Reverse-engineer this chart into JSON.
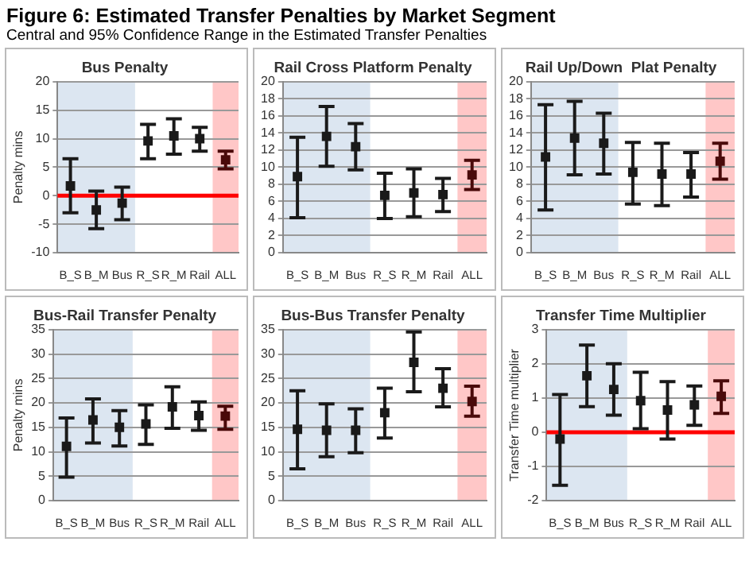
{
  "chart_data": [
    {
      "type": "other",
      "title": "Figure 6: Estimated Transfer Penalties by Market Segment",
      "subtitle": "Central and 95% Confidence Range in the Estimated Transfer Penalties"
    },
    {
      "type": "scatter",
      "title": "Bus Penalty",
      "ylabel": "Penalty mins",
      "categories": [
        "B_S",
        "B_M",
        "Bus",
        "R_S",
        "R_M",
        "Rail",
        "ALL"
      ],
      "values": [
        1.7,
        -2.5,
        -1.3,
        9.6,
        10.5,
        10,
        6.3
      ],
      "errors": [
        [
          -3,
          6.5
        ],
        [
          -5.8,
          0.8
        ],
        [
          -4.2,
          1.5
        ],
        [
          6.5,
          12.5
        ],
        [
          7.3,
          13.5
        ],
        [
          7.8,
          12
        ],
        [
          4.7,
          7.8
        ]
      ],
      "colors": [
        "#1a1a1a",
        "#1a1a1a",
        "#1a1a1a",
        "#1a1a1a",
        "#1a1a1a",
        "#1a1a1a",
        "#4a0a0a"
      ],
      "ylim": [
        -10,
        20
      ],
      "yticks": [
        -10,
        -5,
        0,
        5,
        10,
        15,
        20
      ],
      "grid": "y",
      "marker": "square",
      "ref_lines": [
        {
          "axis": "y",
          "value": 0,
          "color": "#ff0000"
        }
      ],
      "bands": [
        {
          "axis": "x",
          "from": "B_S",
          "to": "Bus",
          "color": "#dce6f1"
        },
        {
          "axis": "x",
          "from": "ALL",
          "to": "ALL",
          "color": "#ffc7c7"
        }
      ]
    },
    {
      "type": "scatter",
      "title": "Rail Cross Platform Penalty",
      "categories": [
        "B_S",
        "B_M",
        "Bus",
        "R_S",
        "R_M",
        "Rail",
        "ALL"
      ],
      "values": [
        8.9,
        13.6,
        12.4,
        6.7,
        7,
        6.8,
        9.1
      ],
      "errors": [
        [
          4.1,
          13.5
        ],
        [
          10.1,
          17.1
        ],
        [
          9.7,
          15.1
        ],
        [
          4,
          9.3
        ],
        [
          4.2,
          9.8
        ],
        [
          4.8,
          8.7
        ],
        [
          7.4,
          10.8
        ]
      ],
      "colors": [
        "#1a1a1a",
        "#1a1a1a",
        "#1a1a1a",
        "#1a1a1a",
        "#1a1a1a",
        "#1a1a1a",
        "#4a0a0a"
      ],
      "ylim": [
        0,
        20
      ],
      "yticks": [
        0,
        2,
        4,
        6,
        8,
        10,
        12,
        14,
        16,
        18,
        20
      ],
      "grid": "y",
      "marker": "square",
      "bands": [
        {
          "axis": "x",
          "from": "B_S",
          "to": "Bus",
          "color": "#dce6f1"
        },
        {
          "axis": "x",
          "from": "ALL",
          "to": "ALL",
          "color": "#ffc7c7"
        }
      ]
    },
    {
      "type": "scatter",
      "title": "Rail Up/Down  Plat Penalty",
      "categories": [
        "B_S",
        "B_M",
        "Bus",
        "R_S",
        "R_M",
        "Rail",
        "ALL"
      ],
      "values": [
        11.2,
        13.4,
        12.8,
        9.4,
        9.2,
        9.2,
        10.7
      ],
      "errors": [
        [
          5,
          17.3
        ],
        [
          9.1,
          17.7
        ],
        [
          9.2,
          16.3
        ],
        [
          5.7,
          12.9
        ],
        [
          5.5,
          12.8
        ],
        [
          6.5,
          11.7
        ],
        [
          8.6,
          12.8
        ]
      ],
      "colors": [
        "#1a1a1a",
        "#1a1a1a",
        "#1a1a1a",
        "#1a1a1a",
        "#1a1a1a",
        "#1a1a1a",
        "#4a0a0a"
      ],
      "ylim": [
        0,
        20
      ],
      "yticks": [
        0,
        2,
        4,
        6,
        8,
        10,
        12,
        14,
        16,
        18,
        20
      ],
      "grid": "y",
      "marker": "square",
      "bands": [
        {
          "axis": "x",
          "from": "B_S",
          "to": "Bus",
          "color": "#dce6f1"
        },
        {
          "axis": "x",
          "from": "ALL",
          "to": "ALL",
          "color": "#ffc7c7"
        }
      ]
    },
    {
      "type": "scatter",
      "title": "Bus-Rail Transfer Penalty",
      "ylabel": "Penalty mins",
      "categories": [
        "B_S",
        "B_M",
        "Bus",
        "R_S",
        "R_M",
        "Rail",
        "ALL"
      ],
      "values": [
        11.1,
        16.5,
        15,
        15.7,
        19.2,
        17.4,
        17.3
      ],
      "errors": [
        [
          4.8,
          16.9
        ],
        [
          11.8,
          20.8
        ],
        [
          11.2,
          18.4
        ],
        [
          11.5,
          19.6
        ],
        [
          14.8,
          23.3
        ],
        [
          14.4,
          20.2
        ],
        [
          14.6,
          19.3
        ]
      ],
      "colors": [
        "#1a1a1a",
        "#1a1a1a",
        "#1a1a1a",
        "#1a1a1a",
        "#1a1a1a",
        "#1a1a1a",
        "#4a0a0a"
      ],
      "ylim": [
        0,
        35
      ],
      "yticks": [
        0,
        5,
        10,
        15,
        20,
        25,
        30,
        35
      ],
      "grid": "y",
      "marker": "square",
      "bands": [
        {
          "axis": "x",
          "from": "B_S",
          "to": "Bus",
          "color": "#dce6f1"
        },
        {
          "axis": "x",
          "from": "ALL",
          "to": "ALL",
          "color": "#ffc7c7"
        }
      ]
    },
    {
      "type": "scatter",
      "title": "Bus-Bus Transfer Penalty",
      "categories": [
        "B_S",
        "B_M",
        "Bus",
        "R_S",
        "R_M",
        "Rail",
        "ALL"
      ],
      "values": [
        14.6,
        14.4,
        14.4,
        18,
        28.3,
        23,
        20.3
      ],
      "errors": [
        [
          6.5,
          22.5
        ],
        [
          9,
          19.8
        ],
        [
          9.8,
          18.8
        ],
        [
          12.8,
          23
        ],
        [
          22.3,
          34.5
        ],
        [
          19.2,
          27
        ],
        [
          17.3,
          23.4
        ]
      ],
      "colors": [
        "#1a1a1a",
        "#1a1a1a",
        "#1a1a1a",
        "#1a1a1a",
        "#1a1a1a",
        "#1a1a1a",
        "#4a0a0a"
      ],
      "ylim": [
        0,
        35
      ],
      "yticks": [
        0,
        5,
        10,
        15,
        20,
        25,
        30,
        35
      ],
      "grid": "y",
      "marker": "square",
      "bands": [
        {
          "axis": "x",
          "from": "B_S",
          "to": "Bus",
          "color": "#dce6f1"
        },
        {
          "axis": "x",
          "from": "ALL",
          "to": "ALL",
          "color": "#ffc7c7"
        }
      ]
    },
    {
      "type": "scatter",
      "title": "Transfer Time Multiplier",
      "ylabel": "Transfer Time multiplier",
      "categories": [
        "B_S",
        "B_M",
        "Bus",
        "R_S",
        "R_M",
        "Rail",
        "ALL"
      ],
      "values": [
        -0.2,
        1.65,
        1.25,
        0.92,
        0.65,
        0.8,
        1.05
      ],
      "errors": [
        [
          -1.55,
          1.1
        ],
        [
          0.75,
          2.55
        ],
        [
          0.5,
          2
        ],
        [
          0.1,
          1.75
        ],
        [
          -0.2,
          1.48
        ],
        [
          0.2,
          1.35
        ],
        [
          0.55,
          1.5
        ]
      ],
      "colors": [
        "#1a1a1a",
        "#1a1a1a",
        "#1a1a1a",
        "#1a1a1a",
        "#1a1a1a",
        "#1a1a1a",
        "#4a0a0a"
      ],
      "ylim": [
        -2,
        3
      ],
      "yticks": [
        -2,
        -1,
        0,
        1,
        2,
        3
      ],
      "grid": "y",
      "marker": "square",
      "ref_lines": [
        {
          "axis": "y",
          "value": 0,
          "color": "#ff0000"
        }
      ],
      "bands": [
        {
          "axis": "x",
          "from": "B_S",
          "to": "Bus",
          "color": "#dce6f1"
        },
        {
          "axis": "x",
          "from": "ALL",
          "to": "ALL",
          "color": "#ffc7c7"
        }
      ]
    }
  ]
}
